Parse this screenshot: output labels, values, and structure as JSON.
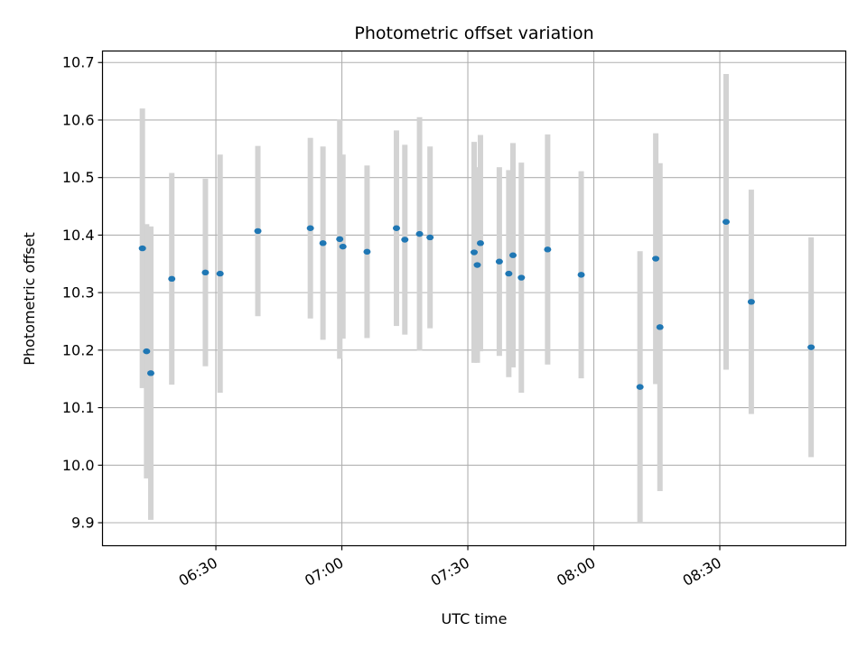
{
  "chart_data": {
    "type": "scatter",
    "title": "Photometric offset variation",
    "xlabel": "UTC time",
    "ylabel": "Photometric offset",
    "x_tick_labels": [
      "06:30",
      "07:00",
      "07:30",
      "08:00",
      "08:30"
    ],
    "x_tick_times": [
      "06:30",
      "07:00",
      "07:30",
      "08:00",
      "08:30"
    ],
    "y_ticks": [
      9.9,
      10.0,
      10.1,
      10.2,
      10.3,
      10.4,
      10.5,
      10.6,
      10.7
    ],
    "xlim": [
      "06:03",
      "09:00"
    ],
    "ylim": [
      9.86,
      10.72
    ],
    "grid": true,
    "colors": {
      "marker": "#1f77b4",
      "errorbar": "#d3d3d3",
      "grid": "#b0b0b0"
    },
    "series": [
      {
        "points": [
          {
            "x": "06:12:30",
            "y": 10.377,
            "err": 0.243
          },
          {
            "x": "06:13:30",
            "y": 10.198,
            "err": 0.221
          },
          {
            "x": "06:14:30",
            "y": 10.16,
            "err": 0.255
          },
          {
            "x": "06:19:30",
            "y": 10.324,
            "err": 0.184
          },
          {
            "x": "06:27:30",
            "y": 10.335,
            "err": 0.163
          },
          {
            "x": "06:31:00",
            "y": 10.333,
            "err": 0.207
          },
          {
            "x": "06:40:00",
            "y": 10.407,
            "err": 0.148
          },
          {
            "x": "06:52:30",
            "y": 10.412,
            "err": 0.157
          },
          {
            "x": "06:55:30",
            "y": 10.386,
            "err": 0.168
          },
          {
            "x": "06:59:30",
            "y": 10.393,
            "err": 0.208
          },
          {
            "x": "07:00:15",
            "y": 10.38,
            "err": 0.16
          },
          {
            "x": "07:06:00",
            "y": 10.371,
            "err": 0.15
          },
          {
            "x": "07:13:00",
            "y": 10.412,
            "err": 0.17
          },
          {
            "x": "07:15:00",
            "y": 10.392,
            "err": 0.165
          },
          {
            "x": "07:18:30",
            "y": 10.402,
            "err": 0.203
          },
          {
            "x": "07:21:00",
            "y": 10.396,
            "err": 0.158
          },
          {
            "x": "07:31:30",
            "y": 10.37,
            "err": 0.192
          },
          {
            "x": "07:32:15",
            "y": 10.348,
            "err": 0.17
          },
          {
            "x": "07:33:00",
            "y": 10.386,
            "err": 0.188
          },
          {
            "x": "07:37:30",
            "y": 10.354,
            "err": 0.164
          },
          {
            "x": "07:39:45",
            "y": 10.333,
            "err": 0.18
          },
          {
            "x": "07:40:45",
            "y": 10.365,
            "err": 0.195
          },
          {
            "x": "07:42:45",
            "y": 10.326,
            "err": 0.2
          },
          {
            "x": "07:49:00",
            "y": 10.375,
            "err": 0.2
          },
          {
            "x": "07:57:00",
            "y": 10.331,
            "err": 0.18
          },
          {
            "x": "08:11:00",
            "y": 10.136,
            "err": 0.236
          },
          {
            "x": "08:14:45",
            "y": 10.359,
            "err": 0.218
          },
          {
            "x": "08:15:45",
            "y": 10.24,
            "err": 0.285
          },
          {
            "x": "08:31:30",
            "y": 10.423,
            "err": 0.257
          },
          {
            "x": "08:37:30",
            "y": 10.284,
            "err": 0.195
          },
          {
            "x": "08:51:45",
            "y": 10.205,
            "err": 0.191
          }
        ]
      }
    ]
  }
}
